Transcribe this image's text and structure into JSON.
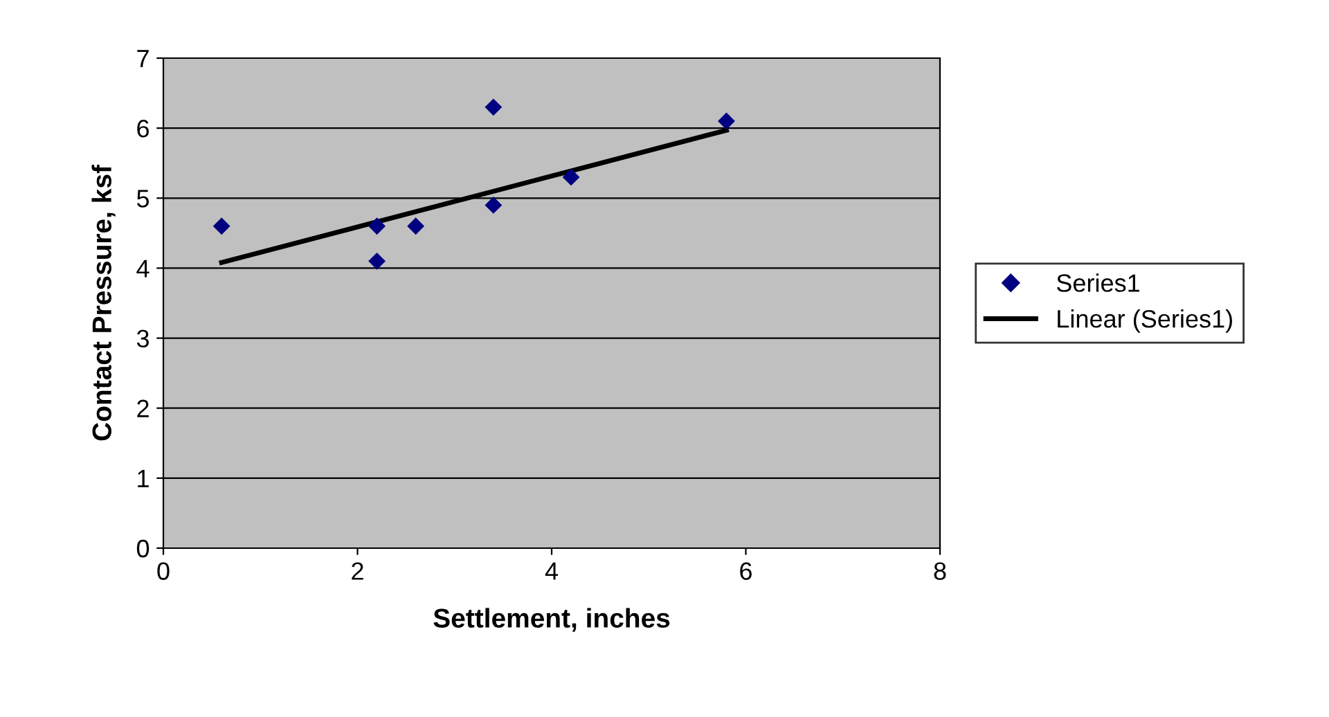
{
  "chart_data": {
    "type": "scatter",
    "xlabel": "Settlement, inches",
    "ylabel": "Contact Pressure, ksf",
    "series": [
      {
        "name": "Series1",
        "color": "#000080",
        "marker": "diamond",
        "x": [
          0.6,
          2.2,
          2.2,
          2.6,
          3.4,
          3.4,
          4.2,
          5.8
        ],
        "values": [
          4.6,
          4.6,
          4.1,
          4.6,
          6.3,
          4.9,
          5.3,
          6.1
        ]
      },
      {
        "name": "Linear (Series1)",
        "type": "line",
        "color": "#000000",
        "marker": "none",
        "line_style": "solid",
        "x": [
          0.6,
          5.8
        ],
        "values": [
          4.08,
          5.97
        ]
      }
    ],
    "xlim": [
      0,
      8
    ],
    "xticks": [
      0,
      2,
      4,
      6,
      8
    ],
    "ylim": [
      0,
      7
    ],
    "yticks": [
      0,
      1,
      2,
      3,
      4,
      5,
      6,
      7
    ],
    "grid": "y",
    "legend": "right"
  }
}
